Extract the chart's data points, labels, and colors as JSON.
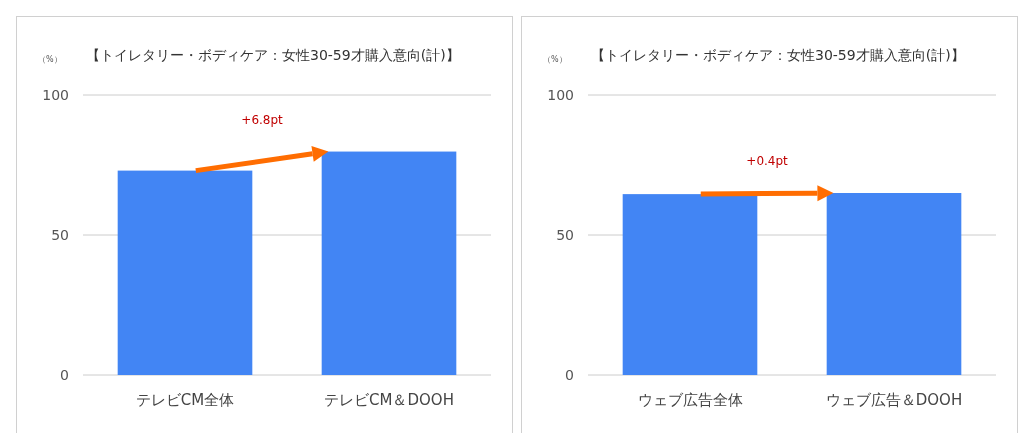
{
  "chart_data": [
    {
      "type": "bar",
      "title": "【トイレタリー・ボディケア：女性30-59才購入意向(計)】",
      "ylabel": "（%）",
      "categories": [
        "テレビCM全体",
        "テレビCM＆DOOH"
      ],
      "values": [
        73.0,
        79.8
      ],
      "color": "#4285f4",
      "ylim": [
        0,
        100
      ],
      "yticks": [
        0,
        50,
        100
      ],
      "grid": "y",
      "annotations": [
        "+6.8pt"
      ]
    },
    {
      "type": "bar",
      "title": "【トイレタリー・ボディケア：女性30-59才購入意向(計)】",
      "ylabel": "（%）",
      "categories": [
        "ウェブ広告全体",
        "ウェブ広告＆DOOH"
      ],
      "values": [
        64.6,
        65.0
      ],
      "color": "#4285f4",
      "ylim": [
        0,
        100
      ],
      "yticks": [
        0,
        50,
        100
      ],
      "grid": "y",
      "annotations": [
        "+0.4pt"
      ]
    }
  ]
}
